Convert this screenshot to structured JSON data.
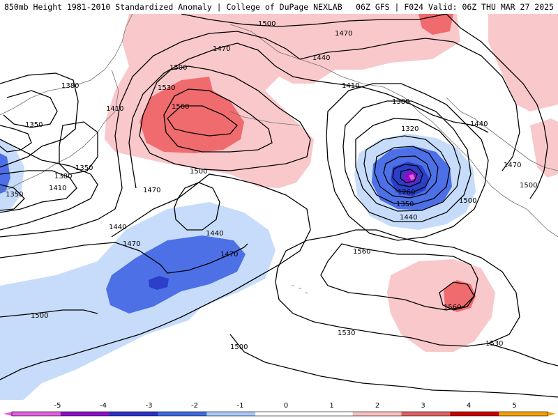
{
  "header": {
    "title_left": "850mb Height 1981-2010 Standardized Anomaly | College of DuPage NEXLAB",
    "title_right": "06Z GFS | F024 Valid: 06Z THU MAR 27 2025"
  },
  "contour_labels": {
    "l1500_top": "1500",
    "l1470_top": "1470",
    "l1470_ak": "1470",
    "l1440_ak": "1440",
    "l1500_nw": "1500",
    "l1530_nw": "1530",
    "l1560_nw": "1560",
    "l1410_ak": "1410",
    "l1380_left": "1380",
    "l1410_left": "1410",
    "l1350_left": "1350",
    "l1350_mid": "1350",
    "l1380_mid": "1380",
    "l1410_mid": "1410",
    "l1350_edge": "1350",
    "l1470_west": "1470",
    "l1500_mid": "1500",
    "l1440_west": "1440",
    "l1440_center": "1440",
    "l1470_south": "1470",
    "l1470_blue": "1470",
    "l1500_sw": "1500",
    "l1500_south": "1500",
    "l1380_low": "1380",
    "l1320_low": "1320",
    "l1260_low": "1260",
    "l1350_low": "1350",
    "l1440_low": "1440",
    "l1440_east": "1440",
    "l1470_east": "1470",
    "l1500_east": "1500",
    "l1500_coast": "1500",
    "l1560_mid": "1560",
    "l1560_ridge": "1560",
    "l1530_mid": "1530",
    "l1530_se": "1530"
  },
  "colorbar": {
    "ticks": [
      "-5",
      "-4",
      "-3",
      "-2",
      "-1",
      "0",
      "1",
      "2",
      "3",
      "4",
      "5"
    ],
    "colors": [
      "#e060e0",
      "#8a10c8",
      "#2a30c8",
      "#3e6ae0",
      "#a8c8f8",
      "#ffffff",
      "#ffffff",
      "#f8c0c0",
      "#e06060",
      "#c80000",
      "#f5a000"
    ]
  },
  "colors": {
    "anom_neg1": "#c6dcfa",
    "anom_neg2": "#4d70e6",
    "anom_neg3": "#2b3fc8",
    "anom_neg4": "#8a10c8",
    "anom_neg5": "#e060e0",
    "anom_pos1": "#f9c8cb",
    "anom_pos2": "#ef6b6e",
    "contour": "#000000",
    "coast": "#707070"
  }
}
